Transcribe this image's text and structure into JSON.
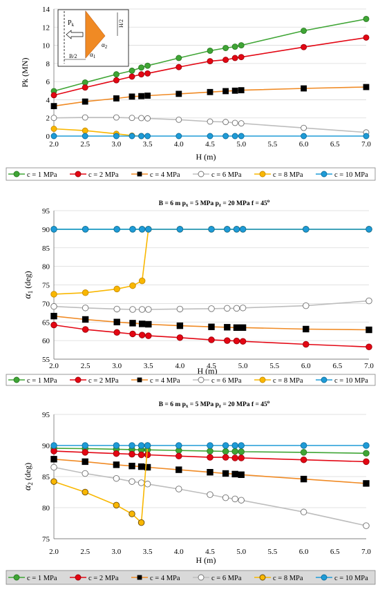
{
  "chart_data": [
    {
      "type": "line",
      "title": "",
      "xlabel": "H  (m)",
      "ylabel": "Pk  (MN)",
      "xlim": [
        2.0,
        7.0
      ],
      "ylim": [
        0,
        14
      ],
      "xticks": [
        "2.0",
        "2.5",
        "3.0",
        "3.5",
        "4.0",
        "4.5",
        "5.0",
        "5.5",
        "6.0",
        "6.5",
        "7.0"
      ],
      "yticks": [
        "0",
        "2",
        "4",
        "6",
        "8",
        "10",
        "12",
        "14"
      ],
      "grid": "horizontal",
      "legend": "bottom",
      "inset": {
        "labels": {
          "pk": "P",
          "pk_sub": "k",
          "h2": "H/2",
          "b2": "B/2",
          "a1": "α",
          "a1_sub": "1",
          "a2": "α",
          "a2_sub": "2"
        }
      },
      "series": [
        {
          "name": "c = 1 MPa",
          "color": "#3fa535",
          "marker": "circle",
          "marker_fill": "#3fa535",
          "marker_stroke": "#2a7a23",
          "x": [
            2.0,
            2.5,
            3.0,
            3.25,
            3.4,
            3.5,
            4.0,
            4.5,
            4.75,
            4.9,
            5.0,
            6.0,
            7.0
          ],
          "y": [
            4.95,
            5.9,
            6.8,
            7.2,
            7.55,
            7.75,
            8.6,
            9.4,
            9.7,
            9.85,
            10.0,
            11.6,
            12.9
          ]
        },
        {
          "name": "c = 2 MPa",
          "color": "#e30613",
          "marker": "circle",
          "marker_fill": "#e30613",
          "marker_stroke": "#a0000a",
          "x": [
            2.0,
            2.5,
            3.0,
            3.25,
            3.4,
            3.5,
            4.0,
            4.5,
            4.75,
            4.9,
            5.0,
            6.0,
            7.0
          ],
          "y": [
            4.5,
            5.35,
            6.15,
            6.55,
            6.8,
            6.9,
            7.6,
            8.25,
            8.4,
            8.6,
            8.7,
            9.8,
            10.85
          ]
        },
        {
          "name": "c = 4 MPa",
          "color": "#f08a24",
          "marker": "square",
          "marker_fill": "#000000",
          "marker_stroke": "#000000",
          "x": [
            2.0,
            2.5,
            3.0,
            3.25,
            3.4,
            3.5,
            4.0,
            4.5,
            4.75,
            4.9,
            5.0,
            6.0,
            7.0
          ],
          "y": [
            3.3,
            3.8,
            4.15,
            4.35,
            4.4,
            4.45,
            4.65,
            4.85,
            4.95,
            5.0,
            5.05,
            5.25,
            5.4
          ]
        },
        {
          "name": "c = 6 MPa",
          "color": "#bdbdbd",
          "marker": "circle",
          "marker_fill": "#ffffff",
          "marker_stroke": "#707070",
          "x": [
            2.0,
            2.5,
            3.0,
            3.25,
            3.4,
            3.5,
            4.0,
            4.5,
            4.75,
            4.9,
            5.0,
            6.0,
            7.0
          ],
          "y": [
            2.0,
            2.05,
            2.05,
            2.0,
            1.98,
            1.95,
            1.8,
            1.6,
            1.55,
            1.45,
            1.4,
            0.9,
            0.4
          ]
        },
        {
          "name": "c = 8 MPa",
          "color": "#f9b700",
          "marker": "circle",
          "marker_fill": "#f9b700",
          "marker_stroke": "#c88c00",
          "x": [
            2.0,
            2.5,
            3.0,
            3.25,
            3.4
          ],
          "y": [
            0.8,
            0.6,
            0.25,
            0.05,
            0.0
          ]
        },
        {
          "name": "c = 10 MPa",
          "color": "#1e9bd7",
          "marker": "circle",
          "marker_fill": "#1e9bd7",
          "marker_stroke": "#0f6f9e",
          "x": [
            2.0,
            2.5,
            3.0,
            3.25,
            3.4,
            3.5,
            4.0,
            4.5,
            4.75,
            4.9,
            5.0,
            6.0,
            7.0
          ],
          "y": [
            0,
            0,
            0,
            0,
            0,
            0,
            0,
            0,
            0,
            0,
            0,
            0,
            0
          ]
        }
      ]
    },
    {
      "type": "line",
      "title": "B = 6 m   p",
      "title_parts": {
        "b": "B = 6 m",
        "px": "p",
        "px_sub": "x",
        "px_val": " = 5 MPa",
        "pz": "p",
        "pz_sub": "z",
        "pz_val": " = 20 MPa",
        "f": "f = 45",
        "f_sup": "o"
      },
      "xlabel": "H  (m)",
      "ylabel": "α",
      "ylabel_sub": "1",
      "ylabel_unit": " (deg)",
      "xlim": [
        2.0,
        7.0
      ],
      "ylim": [
        55,
        95
      ],
      "xticks": [
        "2.0",
        "2.5",
        "3.0",
        "3.5",
        "4.0",
        "4.5",
        "5.0",
        "5.5",
        "6.0",
        "6.5",
        "7.0"
      ],
      "yticks": [
        "55",
        "60",
        "65",
        "70",
        "75",
        "80",
        "85",
        "90",
        "95"
      ],
      "grid": "horizontal",
      "legend": "bottom",
      "series": [
        {
          "name": "c = 1 MPa",
          "color": "#3fa535",
          "marker": "circle",
          "marker_fill": "#3fa535",
          "marker_stroke": "#2a7a23",
          "x": [
            2.0,
            2.5,
            3.0,
            3.25,
            3.4,
            3.5,
            4.0,
            4.5,
            4.75,
            4.9,
            5.0,
            6.0,
            7.0
          ],
          "y": [
            90,
            90,
            90,
            90,
            90,
            90,
            90,
            90,
            90,
            90,
            90,
            90,
            90
          ]
        },
        {
          "name": "c = 2 MPa",
          "color": "#e30613",
          "marker": "circle",
          "marker_fill": "#e30613",
          "marker_stroke": "#a0000a",
          "x": [
            2.0,
            2.5,
            3.0,
            3.25,
            3.4,
            3.5,
            4.0,
            4.5,
            4.75,
            4.9,
            5.0,
            6.0,
            7.0
          ],
          "y": [
            64.2,
            63.0,
            62.2,
            61.8,
            61.5,
            61.3,
            60.8,
            60.2,
            60.0,
            59.9,
            59.8,
            59.0,
            58.3
          ]
        },
        {
          "name": "c = 4 MPa",
          "color": "#f08a24",
          "marker": "square",
          "marker_fill": "#000000",
          "marker_stroke": "#000000",
          "x": [
            2.0,
            2.5,
            3.0,
            3.25,
            3.4,
            3.5,
            4.0,
            4.5,
            4.75,
            4.9,
            5.0,
            6.0,
            7.0
          ],
          "y": [
            66.6,
            65.7,
            65.0,
            64.7,
            64.5,
            64.4,
            64.0,
            63.7,
            63.6,
            63.5,
            63.5,
            63.1,
            62.9
          ]
        },
        {
          "name": "c = 6 MPa",
          "color": "#bdbdbd",
          "marker": "circle",
          "marker_fill": "#ffffff",
          "marker_stroke": "#707070",
          "x": [
            2.0,
            2.5,
            3.0,
            3.25,
            3.4,
            3.5,
            4.0,
            4.5,
            4.75,
            4.9,
            5.0,
            6.0,
            7.0
          ],
          "y": [
            69.2,
            68.8,
            68.5,
            68.4,
            68.4,
            68.4,
            68.5,
            68.6,
            68.7,
            68.7,
            68.8,
            69.4,
            70.7
          ]
        },
        {
          "name": "c = 8 MPa",
          "color": "#f9b700",
          "marker": "circle",
          "marker_fill": "#f9b700",
          "marker_stroke": "#c88c00",
          "x": [
            2.0,
            2.5,
            3.0,
            3.25,
            3.4,
            3.5,
            4.0,
            4.5,
            4.75,
            4.9,
            5.0,
            6.0,
            7.0
          ],
          "y": [
            72.5,
            72.9,
            73.9,
            74.8,
            76.1,
            90,
            90,
            90,
            90,
            90,
            90,
            90,
            90
          ]
        },
        {
          "name": "c = 10 MPa",
          "color": "#1e9bd7",
          "marker": "circle",
          "marker_fill": "#1e9bd7",
          "marker_stroke": "#0f6f9e",
          "x": [
            2.0,
            2.5,
            3.0,
            3.25,
            3.4,
            3.5,
            4.0,
            4.5,
            4.75,
            4.9,
            5.0,
            6.0,
            7.0
          ],
          "y": [
            90,
            90,
            90,
            90,
            90,
            90,
            90,
            90,
            90,
            90,
            90,
            90,
            90
          ]
        }
      ]
    },
    {
      "type": "line",
      "title": "B = 6 m   p",
      "title_parts": {
        "b": "B = 6 m",
        "px": "p",
        "px_sub": "x",
        "px_val": " = 5 MPa",
        "pz": "p",
        "pz_sub": "z",
        "pz_val": " = 20 MPa",
        "f": "f = 45",
        "f_sup": "o"
      },
      "xlabel": "H  (m)",
      "ylabel": "α",
      "ylabel_sub": "2",
      "ylabel_unit": " (deg)",
      "xlim": [
        2.0,
        7.0
      ],
      "ylim": [
        75,
        95
      ],
      "xticks": [
        "2.0",
        "2.5",
        "3.0",
        "3.5",
        "4.0",
        "4.5",
        "5.0",
        "5.5",
        "6.0",
        "6.5",
        "7.0"
      ],
      "yticks": [
        "75",
        "80",
        "85",
        "90",
        "95"
      ],
      "grid": "horizontal",
      "legend": "bottom",
      "series": [
        {
          "name": "c = 1 MPa",
          "color": "#3fa535",
          "marker": "circle",
          "marker_fill": "#3fa535",
          "marker_stroke": "#2a7a23",
          "x": [
            2.0,
            2.5,
            3.0,
            3.25,
            3.4,
            3.5,
            4.0,
            4.5,
            4.75,
            4.9,
            5.0,
            6.0,
            7.0
          ],
          "y": [
            89.55,
            89.5,
            89.4,
            89.35,
            89.3,
            89.3,
            89.2,
            89.1,
            89.05,
            89.05,
            89.0,
            88.9,
            88.75
          ]
        },
        {
          "name": "c = 2 MPa",
          "color": "#e30613",
          "marker": "circle",
          "marker_fill": "#e30613",
          "marker_stroke": "#a0000a",
          "x": [
            2.0,
            2.5,
            3.0,
            3.25,
            3.4,
            3.5,
            4.0,
            4.5,
            4.75,
            4.9,
            5.0,
            6.0,
            7.0
          ],
          "y": [
            89.1,
            88.9,
            88.7,
            88.6,
            88.5,
            88.5,
            88.3,
            88.1,
            88.1,
            88.0,
            88.0,
            87.7,
            87.4
          ]
        },
        {
          "name": "c = 4 MPa",
          "color": "#f08a24",
          "marker": "square",
          "marker_fill": "#000000",
          "marker_stroke": "#000000",
          "x": [
            2.0,
            2.5,
            3.0,
            3.25,
            3.4,
            3.5,
            4.0,
            4.5,
            4.75,
            4.9,
            5.0,
            6.0,
            7.0
          ],
          "y": [
            87.8,
            87.4,
            86.9,
            86.7,
            86.6,
            86.5,
            86.1,
            85.7,
            85.5,
            85.4,
            85.3,
            84.6,
            83.9
          ]
        },
        {
          "name": "c = 6 MPa",
          "color": "#bdbdbd",
          "marker": "circle",
          "marker_fill": "#ffffff",
          "marker_stroke": "#707070",
          "x": [
            2.0,
            2.5,
            3.0,
            3.25,
            3.4,
            3.5,
            4.0,
            4.5,
            4.75,
            4.9,
            5.0,
            6.0,
            7.0
          ],
          "y": [
            86.5,
            85.5,
            84.7,
            84.2,
            84.0,
            83.8,
            83.0,
            82.1,
            81.6,
            81.4,
            81.2,
            79.3,
            77.1
          ]
        },
        {
          "name": "c = 8 MPa",
          "color": "#f9b700",
          "marker": "circle",
          "marker_fill": "#f9b700",
          "marker_stroke": "#6b4a00",
          "x": [
            2.0,
            2.5,
            3.0,
            3.25,
            3.4,
            3.5
          ],
          "y": [
            84.2,
            82.5,
            80.4,
            79.0,
            77.6,
            90.0
          ]
        },
        {
          "name": "c = 10 MPa",
          "color": "#1e9bd7",
          "marker": "circle",
          "marker_fill": "#1e9bd7",
          "marker_stroke": "#0f6f9e",
          "x": [
            2.0,
            2.5,
            3.0,
            3.25,
            3.4,
            3.5,
            4.0,
            4.5,
            4.75,
            4.9,
            5.0,
            6.0,
            7.0
          ],
          "y": [
            90,
            90,
            90,
            90,
            90,
            90,
            90,
            90,
            90,
            90,
            90,
            90,
            90
          ]
        }
      ]
    }
  ]
}
